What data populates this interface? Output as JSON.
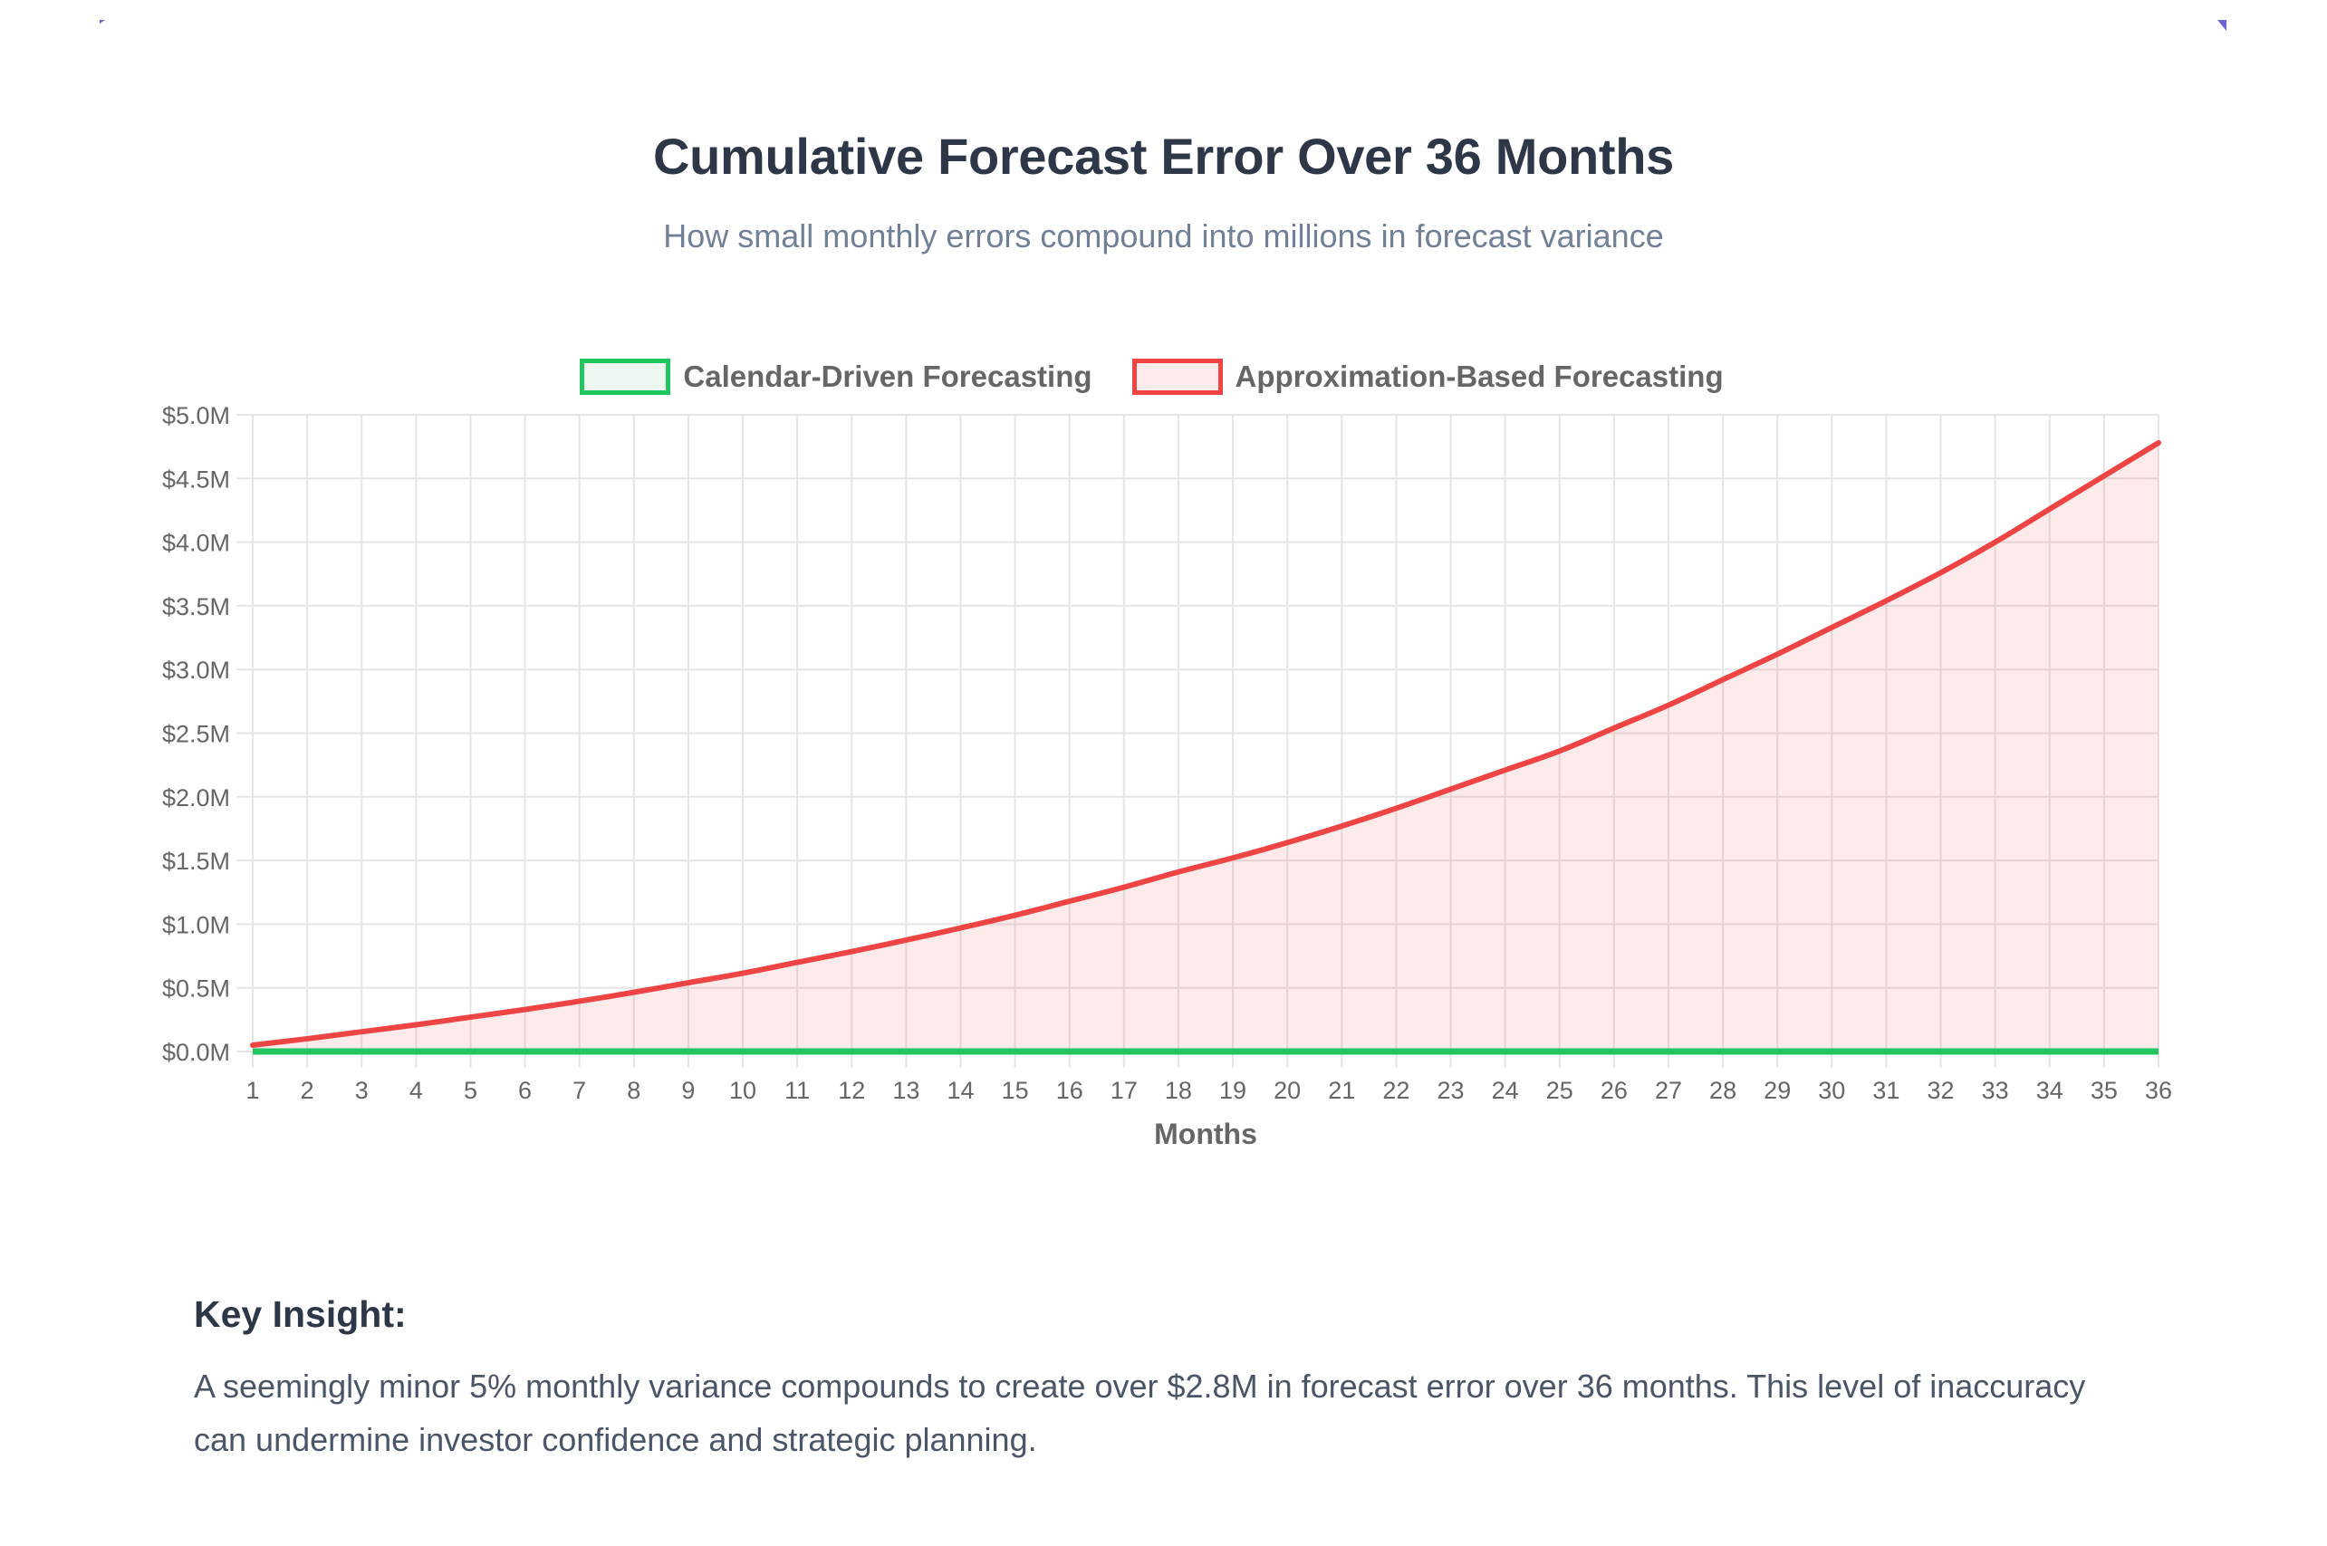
{
  "header": {
    "title": "Cumulative Forecast Error Over 36 Months",
    "subtitle": "How small monthly errors compound into millions in forecast variance"
  },
  "legend": [
    {
      "label": "Calendar-Driven Forecasting",
      "border": "#22c55e",
      "fill": "#ecf8f0"
    },
    {
      "label": "Approximation-Based Forecasting",
      "border": "#ef4444",
      "fill": "#fdeaea"
    }
  ],
  "insight": {
    "heading": "Key Insight:",
    "text": "A seemingly minor 5% monthly variance compounds to create over $2.8M in forecast error over 36 months. This level of inaccuracy can undermine investor confidence and strategic planning."
  },
  "colors": {
    "grid": "#e5e5e5",
    "tick_text": "#666666",
    "calendar_line": "#22c55e",
    "approx_line": "#ef4444",
    "approx_fill": "rgba(239,68,68,0.11)",
    "accent_corner": "#6b63d6"
  },
  "chart_data": {
    "type": "line",
    "title": "Cumulative Forecast Error Over 36 Months",
    "subtitle": "How small monthly errors compound into millions in forecast variance",
    "xlabel": "Months",
    "ylabel": "",
    "x": [
      1,
      2,
      3,
      4,
      5,
      6,
      7,
      8,
      9,
      10,
      11,
      12,
      13,
      14,
      15,
      16,
      17,
      18,
      19,
      20,
      21,
      22,
      23,
      24,
      25,
      26,
      27,
      28,
      29,
      30,
      31,
      32,
      33,
      34,
      35,
      36
    ],
    "ylim": [
      0,
      5000000
    ],
    "y_ticks": [
      "$0.0M",
      "$0.5M",
      "$1.0M",
      "$1.5M",
      "$2.0M",
      "$2.5M",
      "$3.0M",
      "$3.5M",
      "$4.0M",
      "$4.5M",
      "$5.0M"
    ],
    "grid": true,
    "legend_position": "top",
    "series": [
      {
        "name": "Calendar-Driven Forecasting",
        "color": "#22c55e",
        "fill": false,
        "values": [
          0,
          0,
          0,
          0,
          0,
          0,
          0,
          0,
          0,
          0,
          0,
          0,
          0,
          0,
          0,
          0,
          0,
          0,
          0,
          0,
          0,
          0,
          0,
          0,
          0,
          0,
          0,
          0,
          0,
          0,
          0,
          0,
          0,
          0,
          0,
          0
        ]
      },
      {
        "name": "Approximation-Based Forecasting",
        "color": "#ef4444",
        "fill": true,
        "values": [
          50000,
          100000,
          155000,
          210000,
          270000,
          330000,
          395000,
          465000,
          540000,
          615000,
          700000,
          785000,
          875000,
          970000,
          1070000,
          1180000,
          1290000,
          1410000,
          1520000,
          1640000,
          1770000,
          1910000,
          2060000,
          2210000,
          2360000,
          2540000,
          2720000,
          2920000,
          3120000,
          3330000,
          3540000,
          3760000,
          4000000,
          4260000,
          4520000,
          4780000
        ]
      }
    ]
  }
}
